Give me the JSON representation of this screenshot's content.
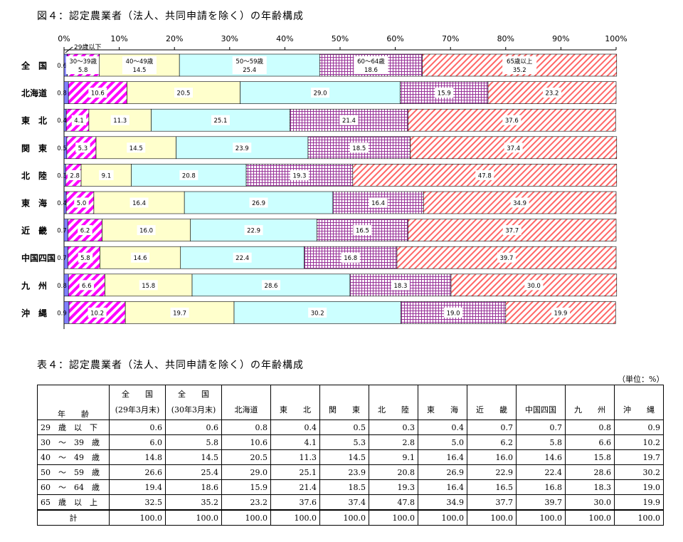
{
  "figure_title": "図４：認定農業者（法人、共同申請を除く）の年齢構成",
  "table_title": "表４：認定農業者（法人、共同申請を除く）の年齢構成",
  "unit": "（単位：%）",
  "colors": {
    "29以下": "#8080ff",
    "30-39": "#ff00ff",
    "40-49": "#ffffcc",
    "50-59": "#ccffff",
    "60-64": "#993399",
    "65以上": "#ff6666"
  },
  "chart_data": {
    "type": "bar",
    "orientation": "horizontal",
    "stacked": "100%",
    "title": "図４：認定農業者（法人、共同申請を除く）の年齢構成",
    "xlim": [
      0,
      100
    ],
    "xticks": [
      "0%",
      "10%",
      "20%",
      "30%",
      "40%",
      "50%",
      "60%",
      "70%",
      "80%",
      "90%",
      "100%"
    ],
    "categories": [
      "全　国",
      "北海道",
      "東　北",
      "関　東",
      "北　陸",
      "東　海",
      "近　畿",
      "中国四国",
      "九　州",
      "沖　縄"
    ],
    "series": [
      {
        "name": "29歳以下",
        "values": [
          0.6,
          0.8,
          0.4,
          0.5,
          0.3,
          0.4,
          0.7,
          0.7,
          0.8,
          0.9
        ]
      },
      {
        "name": "30～39歳",
        "values": [
          5.8,
          10.6,
          4.1,
          5.3,
          2.8,
          5.0,
          6.2,
          5.8,
          6.6,
          10.2
        ]
      },
      {
        "name": "40～49歳",
        "values": [
          14.5,
          20.5,
          11.3,
          14.5,
          9.1,
          16.4,
          16.0,
          14.6,
          15.8,
          19.7
        ]
      },
      {
        "name": "50～59歳",
        "values": [
          25.4,
          29.0,
          25.1,
          23.9,
          20.8,
          26.9,
          22.9,
          22.4,
          28.6,
          30.2
        ]
      },
      {
        "name": "60～64歳",
        "values": [
          18.6,
          15.9,
          21.4,
          18.5,
          19.3,
          16.4,
          16.5,
          16.8,
          18.3,
          19.0
        ]
      },
      {
        "name": "65歳以上",
        "values": [
          35.2,
          23.2,
          37.6,
          37.4,
          47.8,
          34.9,
          37.7,
          39.7,
          30.0,
          19.9
        ]
      }
    ]
  },
  "table": {
    "corner": "年　　齢",
    "headers": [
      [
        "全　　国",
        "(29年3月末)"
      ],
      [
        "全　　国",
        "(30年3月末)"
      ],
      [
        "北海道"
      ],
      [
        "東　　北"
      ],
      [
        "関　　東"
      ],
      [
        "北　　陸"
      ],
      [
        "東　　海"
      ],
      [
        "近　　畿"
      ],
      [
        "中国四国"
      ],
      [
        "九　　州"
      ],
      [
        "沖　　縄"
      ]
    ],
    "rows": [
      {
        "label": "29　歳　以　下",
        "values": [
          "0.6",
          "0.6",
          "0.8",
          "0.4",
          "0.5",
          "0.3",
          "0.4",
          "0.7",
          "0.7",
          "0.8",
          "0.9"
        ]
      },
      {
        "label": "30　～　39　歳",
        "values": [
          "6.0",
          "5.8",
          "10.6",
          "4.1",
          "5.3",
          "2.8",
          "5.0",
          "6.2",
          "5.8",
          "6.6",
          "10.2"
        ]
      },
      {
        "label": "40　～　49　歳",
        "values": [
          "14.8",
          "14.5",
          "20.5",
          "11.3",
          "14.5",
          "9.1",
          "16.4",
          "16.0",
          "14.6",
          "15.8",
          "19.7"
        ]
      },
      {
        "label": "50　～　59　歳",
        "values": [
          "26.6",
          "25.4",
          "29.0",
          "25.1",
          "23.9",
          "20.8",
          "26.9",
          "22.9",
          "22.4",
          "28.6",
          "30.2"
        ]
      },
      {
        "label": "60　～　64　歳",
        "values": [
          "19.4",
          "18.6",
          "15.9",
          "21.4",
          "18.5",
          "19.3",
          "16.4",
          "16.5",
          "16.8",
          "18.3",
          "19.0"
        ]
      },
      {
        "label": "65　歳　以　上",
        "values": [
          "32.5",
          "35.2",
          "23.2",
          "37.6",
          "37.4",
          "47.8",
          "34.9",
          "37.7",
          "39.7",
          "30.0",
          "19.9"
        ]
      },
      {
        "label": "計",
        "values": [
          "100.0",
          "100.0",
          "100.0",
          "100.0",
          "100.0",
          "100.0",
          "100.0",
          "100.0",
          "100.0",
          "100.0",
          "100.0"
        ]
      }
    ]
  }
}
